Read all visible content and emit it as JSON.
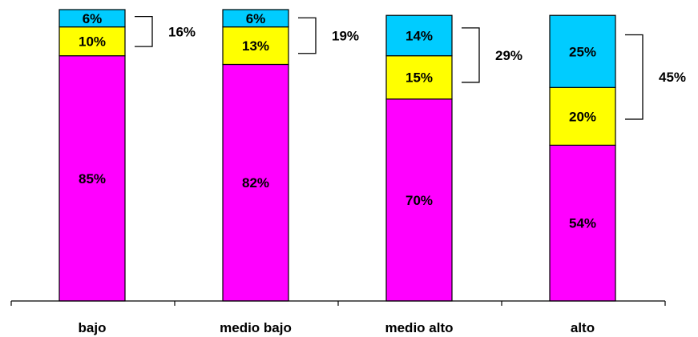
{
  "chart_data": {
    "type": "bar",
    "stacked": true,
    "normalized_percent": true,
    "categories": [
      "bajo",
      "medio bajo",
      "medio alto",
      "alto"
    ],
    "series": [
      {
        "color": "#FF00FF",
        "values": [
          85,
          82,
          70,
          54
        ],
        "labels": [
          "85%",
          "82%",
          "70%",
          "54%"
        ]
      },
      {
        "color": "#FFFF00",
        "values": [
          10,
          13,
          15,
          20
        ],
        "labels": [
          "10%",
          "13%",
          "15%",
          "20%"
        ]
      },
      {
        "color": "#00CCFF",
        "values": [
          6,
          6,
          14,
          25
        ],
        "labels": [
          "6%",
          "6%",
          "14%",
          "25%"
        ]
      }
    ],
    "bracket_totals": [
      16,
      19,
      29,
      45
    ],
    "bracket_labels": [
      "16%",
      "19%",
      "29%",
      "45%"
    ],
    "ylim": [
      0,
      101
    ],
    "grid": false,
    "legend": "none",
    "title": "",
    "xlabel": "",
    "ylabel": ""
  }
}
